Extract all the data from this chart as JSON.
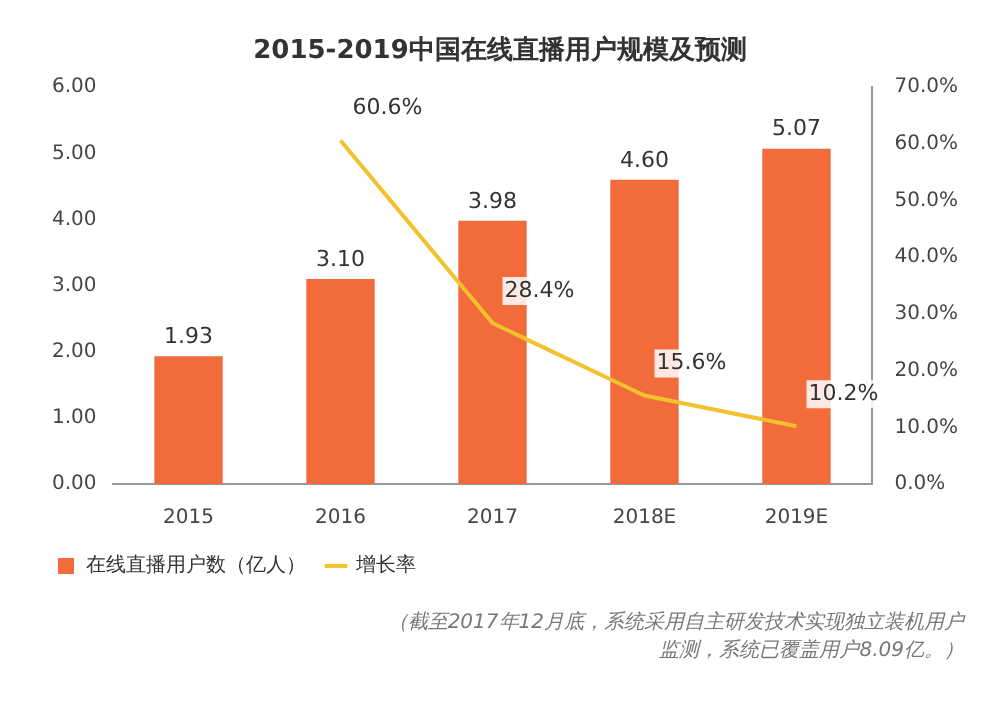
{
  "chart_data": {
    "type": "bar",
    "title": "2015-2019中国在线直播用户规模及预测",
    "categories": [
      "2015",
      "2016",
      "2017",
      "2018E",
      "2019E"
    ],
    "series": [
      {
        "name": "在线直播用户数（亿人）",
        "color": "#f26b3a",
        "values": [
          1.93,
          3.1,
          3.98,
          4.6,
          5.07
        ],
        "value_labels": [
          "1.93",
          "3.10",
          "3.98",
          "4.60",
          "5.07"
        ]
      },
      {
        "name": "增长率",
        "type": "line",
        "axis": "y2",
        "color": "#f2c12e",
        "values": [
          null,
          60.6,
          28.4,
          15.6,
          10.2
        ],
        "value_labels": [
          null,
          "60.6%",
          "28.4%",
          "15.6%",
          "10.2%"
        ]
      }
    ],
    "ylim": [
      0,
      6
    ],
    "yticks": [
      {
        "value": 0,
        "label": "0.00"
      },
      {
        "value": 1,
        "label": "1.00"
      },
      {
        "value": 2,
        "label": "2.00"
      },
      {
        "value": 3,
        "label": "3.00"
      },
      {
        "value": 4,
        "label": "4.00"
      },
      {
        "value": 5,
        "label": "5.00"
      },
      {
        "value": 6,
        "label": "6.00"
      }
    ],
    "y2lim": [
      0,
      70
    ],
    "y2ticks": [
      {
        "value": 0,
        "label": "0.0%"
      },
      {
        "value": 10,
        "label": "10.0%"
      },
      {
        "value": 20,
        "label": "20.0%"
      },
      {
        "value": 30,
        "label": "30.0%"
      },
      {
        "value": 40,
        "label": "40.0%"
      },
      {
        "value": 50,
        "label": "50.0%"
      },
      {
        "value": 60,
        "label": "60.0%"
      },
      {
        "value": 70,
        "label": "70.0%"
      }
    ],
    "grid": false,
    "legend": "bottom left",
    "marker": "none",
    "line_style": "solid",
    "annotations": [
      "（截至2017年12月底，系统采用自主研发技术实现独立装机用户监测，系统已覆盖用户8.09亿。）"
    ]
  }
}
